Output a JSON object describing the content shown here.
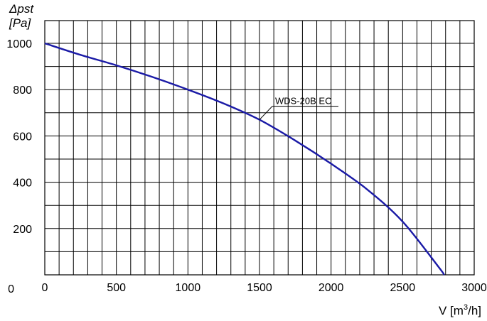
{
  "chart_data": {
    "type": "line",
    "ylabel_line1": "Δpst",
    "ylabel_line2": "[Pa]",
    "xlabel_prefix": "V [m",
    "xlabel_sup": "3",
    "xlabel_suffix": "/h]",
    "xlim": [
      0,
      3000
    ],
    "ylim": [
      0,
      1000
    ],
    "x_ticks": [
      0,
      500,
      1000,
      1500,
      2000,
      2500,
      3000
    ],
    "y_ticks": [
      0,
      200,
      400,
      600,
      800,
      1000
    ],
    "grid": true,
    "grid_step_x": 100,
    "grid_step_y": 100,
    "series": [
      {
        "name": "WDS-20B EC",
        "color": "#1a1aa6",
        "x": [
          0,
          250,
          500,
          750,
          1000,
          1250,
          1500,
          1750,
          2000,
          2250,
          2500,
          2750,
          2790
        ],
        "y": [
          1000,
          950,
          905,
          855,
          800,
          740,
          670,
          580,
          480,
          370,
          230,
          35,
          0
        ]
      }
    ],
    "annotation": {
      "text": "WDS-20B EC",
      "x": 1500,
      "y": 670
    }
  }
}
